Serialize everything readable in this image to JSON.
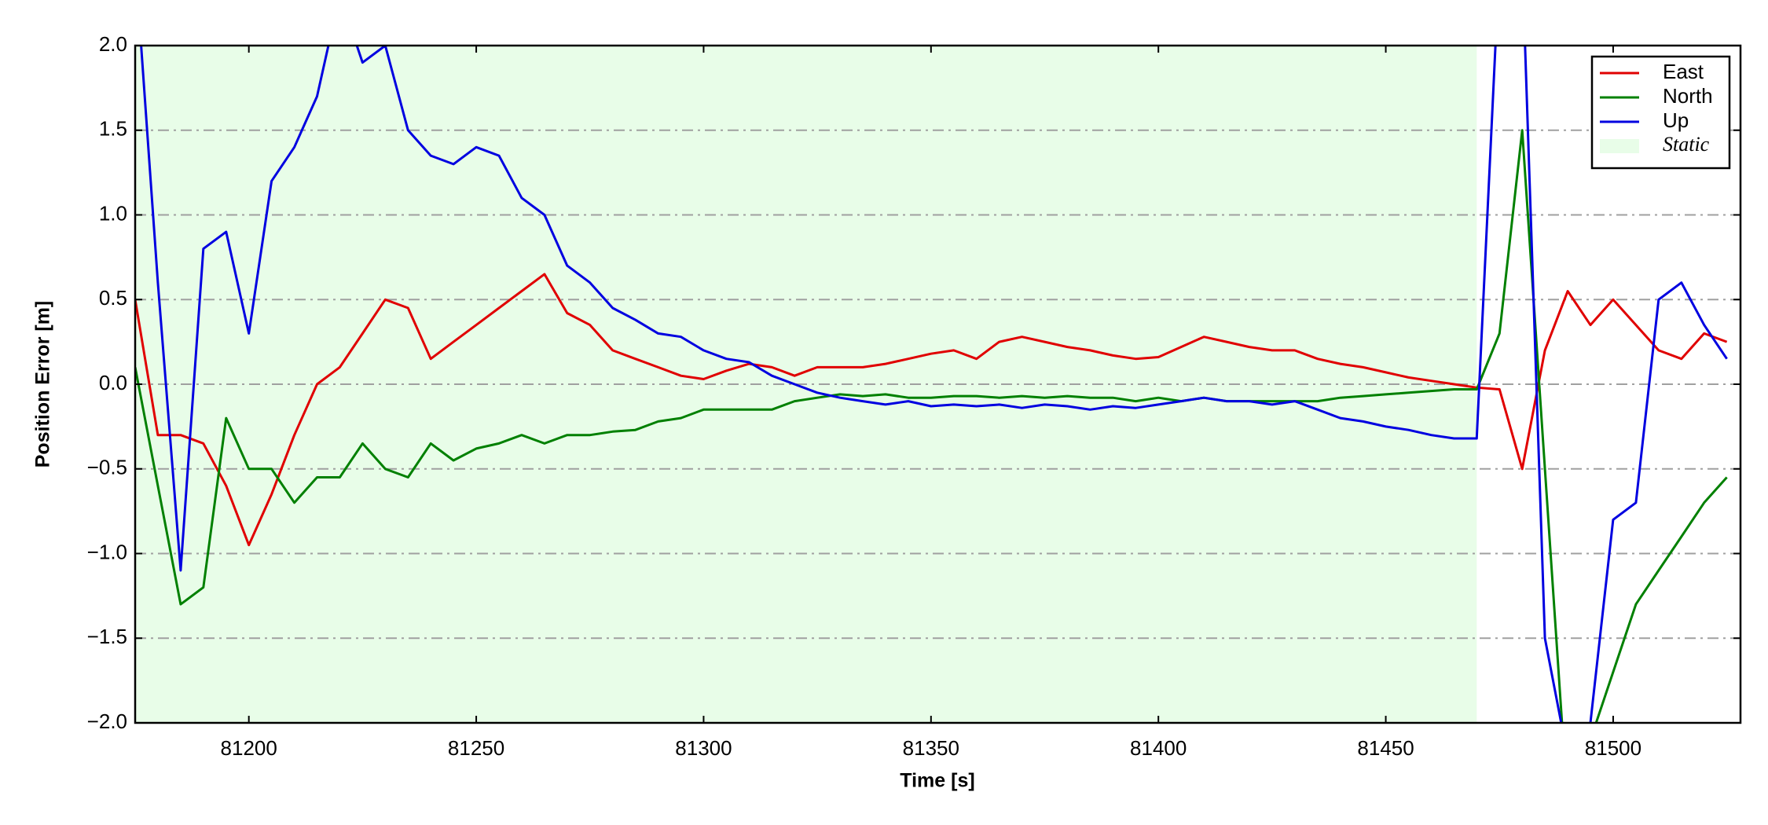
{
  "chart_data": {
    "type": "line",
    "xlabel": "Time [s]",
    "ylabel": "Position Error [m]",
    "xlim": [
      81175,
      81528
    ],
    "ylim": [
      -2,
      2
    ],
    "xticks": [
      81200,
      81250,
      81300,
      81350,
      81400,
      81450,
      81500
    ],
    "yticks": [
      {
        "value": -2,
        "label": "−2.0"
      },
      {
        "value": -1.5,
        "label": "−1.5"
      },
      {
        "value": -1,
        "label": "−1.0"
      },
      {
        "value": -0.5,
        "label": "−0.5"
      },
      {
        "value": 0,
        "label": "0.0"
      },
      {
        "value": 0.5,
        "label": "0.5"
      },
      {
        "value": 1,
        "label": "1.0"
      },
      {
        "value": 1.5,
        "label": "1.5"
      },
      {
        "value": 2,
        "label": "2.0"
      }
    ],
    "grid": true,
    "legend": "upper right",
    "spans": [
      {
        "name": "Static",
        "start": 81175,
        "end": 81470,
        "color": "#e8fde8"
      }
    ],
    "x": [
      81175,
      81180,
      81185,
      81190,
      81195,
      81200,
      81205,
      81210,
      81215,
      81220,
      81225,
      81230,
      81235,
      81240,
      81245,
      81250,
      81255,
      81260,
      81265,
      81270,
      81275,
      81280,
      81285,
      81290,
      81295,
      81300,
      81305,
      81310,
      81315,
      81320,
      81325,
      81330,
      81335,
      81340,
      81345,
      81350,
      81355,
      81360,
      81365,
      81370,
      81375,
      81380,
      81385,
      81390,
      81395,
      81400,
      81405,
      81410,
      81415,
      81420,
      81425,
      81430,
      81435,
      81440,
      81445,
      81450,
      81455,
      81460,
      81465,
      81470,
      81475,
      81480,
      81485,
      81490,
      81495,
      81500,
      81505,
      81510,
      81515,
      81520,
      81525
    ],
    "series": [
      {
        "name": "East",
        "color": "#e00000",
        "values": [
          0.5,
          -0.3,
          -0.3,
          -0.35,
          -0.6,
          -0.95,
          -0.65,
          -0.3,
          0.0,
          0.1,
          0.3,
          0.5,
          0.45,
          0.15,
          0.25,
          0.35,
          0.45,
          0.55,
          0.65,
          0.42,
          0.35,
          0.2,
          0.15,
          0.1,
          0.05,
          0.03,
          0.08,
          0.12,
          0.1,
          0.05,
          0.1,
          0.1,
          0.1,
          0.12,
          0.15,
          0.18,
          0.2,
          0.15,
          0.25,
          0.28,
          0.25,
          0.22,
          0.2,
          0.17,
          0.15,
          0.16,
          0.22,
          0.28,
          0.25,
          0.22,
          0.2,
          0.2,
          0.15,
          0.12,
          0.1,
          0.07,
          0.04,
          0.02,
          0.0,
          -0.02,
          -0.03,
          -0.5,
          0.2,
          0.55,
          0.35,
          0.5,
          0.35,
          0.2,
          0.15,
          0.3,
          0.25
        ]
      },
      {
        "name": "North",
        "color": "#008000",
        "values": [
          0.1,
          -0.6,
          -1.3,
          -1.2,
          -0.2,
          -0.5,
          -0.5,
          -0.7,
          -0.55,
          -0.55,
          -0.35,
          -0.5,
          -0.55,
          -0.35,
          -0.45,
          -0.38,
          -0.35,
          -0.3,
          -0.35,
          -0.3,
          -0.3,
          -0.28,
          -0.27,
          -0.22,
          -0.2,
          -0.15,
          -0.15,
          -0.15,
          -0.15,
          -0.1,
          -0.08,
          -0.06,
          -0.07,
          -0.06,
          -0.08,
          -0.08,
          -0.07,
          -0.07,
          -0.08,
          -0.07,
          -0.08,
          -0.07,
          -0.08,
          -0.08,
          -0.1,
          -0.08,
          -0.1,
          -0.08,
          -0.1,
          -0.1,
          -0.1,
          -0.1,
          -0.1,
          -0.08,
          -0.07,
          -0.06,
          -0.05,
          -0.04,
          -0.03,
          -0.03,
          0.3,
          1.5,
          -0.5,
          -2.5,
          -2.1,
          -1.7,
          -1.3,
          -1.1,
          -0.9,
          -0.7,
          -0.55
        ]
      },
      {
        "name": "Up",
        "color": "#0000e0",
        "values": [
          2.5,
          0.6,
          -1.1,
          0.8,
          0.9,
          0.3,
          1.2,
          1.4,
          1.7,
          2.3,
          1.9,
          2.0,
          1.5,
          1.35,
          1.3,
          1.4,
          1.35,
          1.1,
          1.0,
          0.7,
          0.6,
          0.45,
          0.38,
          0.3,
          0.28,
          0.2,
          0.15,
          0.13,
          0.05,
          0.0,
          -0.05,
          -0.08,
          -0.1,
          -0.12,
          -0.1,
          -0.13,
          -0.12,
          -0.13,
          -0.12,
          -0.14,
          -0.12,
          -0.13,
          -0.15,
          -0.13,
          -0.14,
          -0.12,
          -0.1,
          -0.08,
          -0.1,
          -0.1,
          -0.12,
          -0.1,
          -0.15,
          -0.2,
          -0.22,
          -0.25,
          -0.27,
          -0.3,
          -0.32,
          -0.32,
          2.5,
          2.5,
          -1.5,
          -2.2,
          -2.0,
          -0.8,
          -0.7,
          0.5,
          0.6,
          0.35,
          0.15
        ]
      }
    ]
  }
}
